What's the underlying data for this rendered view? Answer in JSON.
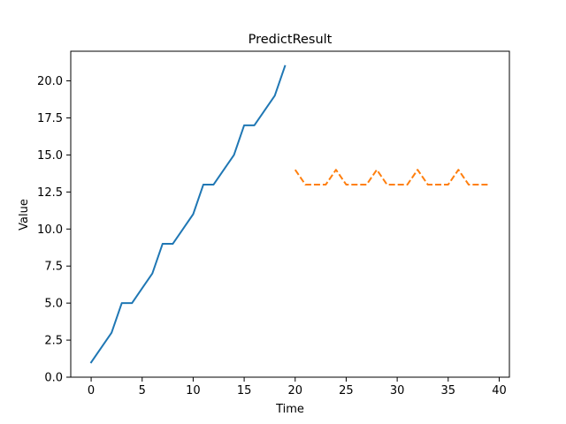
{
  "chart_data": {
    "type": "line",
    "title": "PredictResult",
    "xlabel": "Time",
    "ylabel": "Value",
    "xlim": [
      -2,
      41
    ],
    "ylim": [
      0,
      22
    ],
    "xticks": [
      0,
      5,
      10,
      15,
      20,
      25,
      30,
      35,
      40
    ],
    "xtick_labels": [
      "0",
      "5",
      "10",
      "15",
      "20",
      "25",
      "30",
      "35",
      "40"
    ],
    "yticks": [
      0,
      2.5,
      5,
      7.5,
      10,
      12.5,
      15,
      17.5,
      20
    ],
    "ytick_labels": [
      "0.0",
      "2.5",
      "5.0",
      "7.5",
      "10.0",
      "12.5",
      "15.0",
      "17.5",
      "20.0"
    ],
    "grid": false,
    "series": [
      {
        "color": "#1f77b4",
        "dash": "solid",
        "x": [
          0,
          1,
          2,
          3,
          4,
          5,
          6,
          7,
          8,
          9,
          10,
          11,
          12,
          13,
          14,
          15,
          16,
          17,
          18,
          19
        ],
        "y": [
          1,
          2,
          3,
          5,
          5,
          6,
          7,
          9,
          9,
          10,
          11,
          13,
          13,
          14,
          15,
          17,
          17,
          18,
          19,
          21
        ]
      },
      {
        "color": "#ff7f0e",
        "dash": "dashed",
        "x": [
          20,
          21,
          22,
          23,
          24,
          25,
          26,
          27,
          28,
          29,
          30,
          31,
          32,
          33,
          34,
          35,
          36,
          37,
          38,
          39
        ],
        "y": [
          14,
          13,
          13,
          13,
          14,
          13,
          13,
          13,
          14,
          13,
          13,
          13,
          14,
          13,
          13,
          13,
          14,
          13,
          13,
          13
        ]
      }
    ]
  }
}
